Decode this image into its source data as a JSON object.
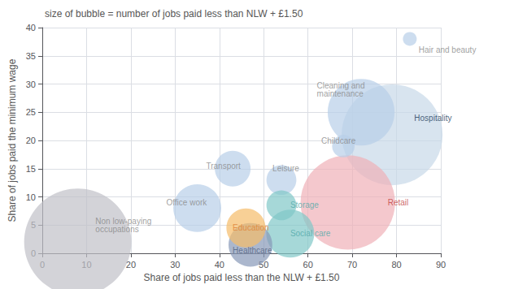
{
  "chart_data": {
    "type": "scatter",
    "title": "size of bubble = number of jobs paid less than NLW + £1.50",
    "xlabel": "Share of jobs paid less than the NLW + £1.50",
    "ylabel": "Share of jobs paid the minimum wage",
    "xlim": [
      0,
      90
    ],
    "ylim": [
      0,
      40
    ],
    "xticks": [
      0,
      10,
      20,
      30,
      40,
      50,
      60,
      70,
      80,
      90
    ],
    "yticks": [
      0,
      5,
      10,
      15,
      20,
      25,
      30,
      35,
      40
    ],
    "grid": true,
    "x": [
      8,
      79,
      69,
      72,
      35,
      56,
      47,
      46,
      43,
      54,
      54,
      68,
      83
    ],
    "values": [
      2,
      21,
      9,
      25,
      8,
      3.5,
      1.5,
      4.5,
      15,
      13,
      8.5,
      19,
      38
    ],
    "sizes": [
      9000,
      8000,
      7000,
      3500,
      1800,
      1800,
      1500,
      1200,
      1000,
      700,
      700,
      400,
      150
    ],
    "colors": [
      "#c0c0c8",
      "#c8d8e8",
      "#f0b0b8",
      "#b8cfe8",
      "#b8cfe8",
      "#80c8c8",
      "#8898b8",
      "#f5bc6a",
      "#b8cfe8",
      "#b8cfe8",
      "#80c8c8",
      "#b8cfe8",
      "#b8cfe8"
    ],
    "annotations": [
      {
        "text": "Non low-paying\noccupations",
        "x": 12,
        "y": 5,
        "color": "#888888"
      },
      {
        "text": "Office work",
        "x": 28,
        "y": 9,
        "color": "#888888"
      },
      {
        "text": "Transport",
        "x": 37,
        "y": 15.5,
        "color": "#888888"
      },
      {
        "text": "Education",
        "x": 43,
        "y": 4.5,
        "color": "#e08030"
      },
      {
        "text": "Healthcare",
        "x": 43,
        "y": 0.5,
        "color": "#506080"
      },
      {
        "text": "Leisure",
        "x": 52,
        "y": 15,
        "color": "#888888"
      },
      {
        "text": "Storage",
        "x": 56,
        "y": 8.5,
        "color": "#50a8a8"
      },
      {
        "text": "Social care",
        "x": 56,
        "y": 3.5,
        "color": "#50a8a8"
      },
      {
        "text": "Childcare",
        "x": 63,
        "y": 20,
        "color": "#888888"
      },
      {
        "text": "Cleaning and\nmaintenance",
        "x": 62,
        "y": 29,
        "color": "#888888"
      },
      {
        "text": "Retail",
        "x": 78,
        "y": 9,
        "color": "#c04040"
      },
      {
        "text": "Hospitality",
        "x": 84,
        "y": 24,
        "color": "#1a3a5a"
      },
      {
        "text": "Hair and beauty",
        "x": 85,
        "y": 36,
        "color": "#888888"
      }
    ]
  }
}
